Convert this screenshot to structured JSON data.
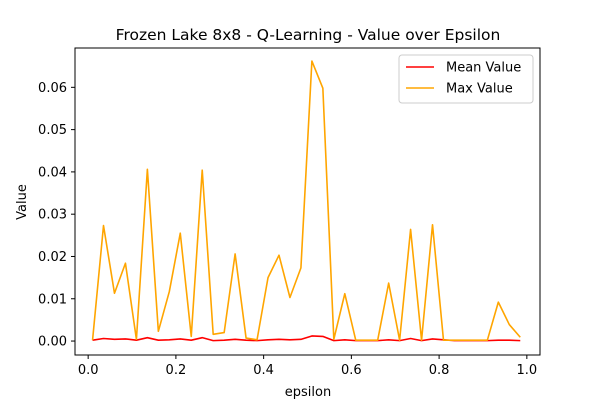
{
  "chart_data": {
    "type": "line",
    "title": "Frozen Lake 8x8 - Q-Learning - Value over Epsilon",
    "xlabel": "epsilon",
    "ylabel": "Value",
    "xlim": [
      -0.03,
      1.03
    ],
    "ylim": [
      -0.0033,
      0.0693
    ],
    "xticks": [
      0.0,
      0.2,
      0.4,
      0.6,
      0.8,
      1.0
    ],
    "xtick_labels": [
      "0.0",
      "0.2",
      "0.4",
      "0.6",
      "0.8",
      "1.0"
    ],
    "yticks": [
      0.0,
      0.01,
      0.02,
      0.03,
      0.04,
      0.05,
      0.06
    ],
    "ytick_labels": [
      "0.00",
      "0.01",
      "0.02",
      "0.03",
      "0.04",
      "0.05",
      "0.06"
    ],
    "grid": false,
    "legend_position": "top-right",
    "x": [
      0.01,
      0.035,
      0.06,
      0.085,
      0.11,
      0.135,
      0.16,
      0.185,
      0.21,
      0.235,
      0.26,
      0.285,
      0.31,
      0.335,
      0.36,
      0.385,
      0.41,
      0.435,
      0.46,
      0.485,
      0.51,
      0.535,
      0.56,
      0.585,
      0.61,
      0.635,
      0.66,
      0.685,
      0.71,
      0.735,
      0.76,
      0.785,
      0.81,
      0.835,
      0.86,
      0.885,
      0.91,
      0.935,
      0.96,
      0.985
    ],
    "series": [
      {
        "name": "Mean Value",
        "color": "#ff0000",
        "values": [
          0.0002,
          0.0006,
          0.0004,
          0.0005,
          0.0002,
          0.0008,
          0.0002,
          0.0003,
          0.0005,
          0.0002,
          0.0008,
          0.0001,
          0.0002,
          0.0004,
          0.0002,
          0.0001,
          0.0003,
          0.0004,
          0.0003,
          0.0004,
          0.0012,
          0.0011,
          0.0001,
          0.0003,
          0.0001,
          0.0001,
          0.0001,
          0.0003,
          0.0001,
          0.0006,
          0.0001,
          0.0005,
          0.0003,
          0.0001,
          0.0001,
          0.0001,
          0.0001,
          0.0002,
          0.0002,
          0.0001
        ]
      },
      {
        "name": "Max Value",
        "color": "#ffa500",
        "values": [
          0.0002,
          0.0273,
          0.0113,
          0.0184,
          0.0004,
          0.0406,
          0.0023,
          0.0117,
          0.0255,
          0.0011,
          0.0404,
          0.0016,
          0.002,
          0.0206,
          0.0007,
          0.0003,
          0.015,
          0.0203,
          0.0103,
          0.0173,
          0.0662,
          0.0598,
          0.0004,
          0.0112,
          0.0002,
          0.0002,
          0.0002,
          0.0137,
          0.0002,
          0.0264,
          0.0002,
          0.0275,
          0.0002,
          0.0002,
          0.0002,
          0.0002,
          0.0002,
          0.0092,
          0.0039,
          0.0009
        ]
      }
    ]
  }
}
